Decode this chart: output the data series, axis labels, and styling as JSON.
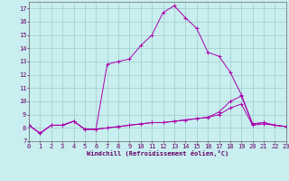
{
  "xlabel": "Windchill (Refroidissement éolien,°C)",
  "bg_color": "#c8eef0",
  "grid_color": "#a0ccc8",
  "line_color": "#aa00aa",
  "x_ticks": [
    0,
    1,
    2,
    3,
    4,
    5,
    6,
    7,
    8,
    9,
    10,
    11,
    12,
    13,
    14,
    15,
    16,
    17,
    18,
    19,
    20,
    21,
    22,
    23
  ],
  "y_ticks": [
    7,
    8,
    9,
    10,
    11,
    12,
    13,
    14,
    15,
    16,
    17
  ],
  "xlim": [
    0,
    23
  ],
  "ylim": [
    7,
    17.5
  ],
  "series1_x": [
    0,
    1,
    2,
    3,
    4,
    5,
    6,
    7,
    8,
    9,
    10,
    11,
    12,
    13,
    14,
    15,
    16,
    17,
    18,
    19,
    20,
    21,
    22,
    23
  ],
  "series1_y": [
    8.2,
    7.6,
    8.2,
    8.2,
    8.5,
    7.9,
    7.9,
    8.0,
    8.1,
    8.2,
    8.3,
    8.4,
    8.4,
    8.5,
    8.6,
    8.7,
    8.8,
    9.0,
    9.5,
    9.8,
    8.2,
    8.3,
    8.2,
    8.1
  ],
  "series2_x": [
    0,
    1,
    2,
    3,
    4,
    5,
    6,
    7,
    8,
    9,
    10,
    11,
    12,
    13,
    14,
    15,
    16,
    17,
    18,
    19,
    20,
    21,
    22,
    23
  ],
  "series2_y": [
    8.2,
    7.6,
    8.2,
    8.2,
    8.5,
    7.9,
    7.9,
    12.8,
    13.0,
    13.2,
    14.2,
    15.0,
    16.7,
    17.2,
    16.3,
    15.5,
    13.7,
    13.4,
    12.2,
    10.5,
    8.3,
    8.4,
    8.2,
    8.1
  ],
  "series3_x": [
    0,
    1,
    2,
    3,
    4,
    5,
    6,
    7,
    8,
    9,
    10,
    11,
    12,
    13,
    14,
    15,
    16,
    17,
    18,
    19,
    20,
    21,
    22,
    23
  ],
  "series3_y": [
    8.2,
    7.6,
    8.2,
    8.2,
    8.5,
    7.9,
    7.9,
    8.0,
    8.1,
    8.2,
    8.3,
    8.4,
    8.4,
    8.5,
    8.6,
    8.7,
    8.8,
    9.2,
    10.0,
    10.4,
    8.3,
    8.4,
    8.2,
    8.1
  ],
  "tick_font_size": 5,
  "xlabel_font_size": 5
}
